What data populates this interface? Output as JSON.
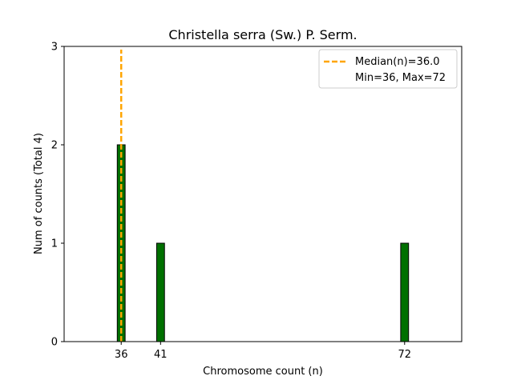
{
  "chart_data": {
    "type": "bar",
    "title": "Christella serra (Sw.) P. Serm.",
    "xlabel": "Chromosome count (n)",
    "ylabel": "Num of counts     (Total 4)",
    "xlim": [
      28.75,
      79.25
    ],
    "ylim": [
      0,
      3
    ],
    "xticks": [
      36,
      41,
      72
    ],
    "yticks": [
      0,
      1,
      2,
      3
    ],
    "bar_width": 1,
    "bars": [
      {
        "x": 36,
        "value": 2
      },
      {
        "x": 41,
        "value": 1
      },
      {
        "x": 72,
        "value": 1
      }
    ],
    "median": 36.0,
    "legend": {
      "placement": "top-right",
      "entries": [
        "Median(n)=36.0",
        "Min=36, Max=72"
      ]
    },
    "colors": {
      "bar_fill": "#007000",
      "bar_edge": "#000000",
      "median_line": "#FFA500"
    }
  }
}
